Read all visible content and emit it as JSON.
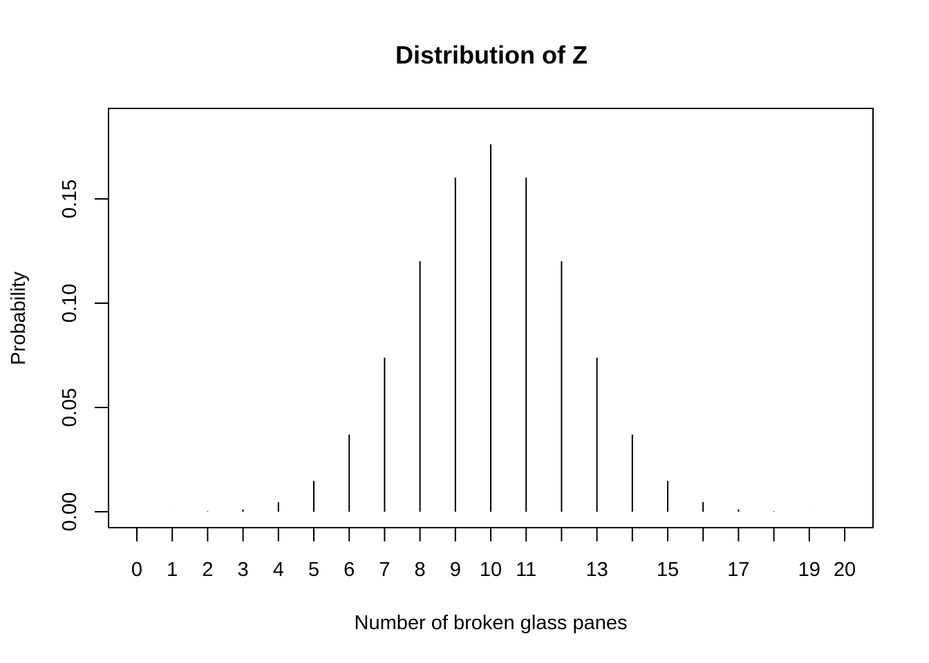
{
  "chart_data": {
    "type": "bar",
    "title": "Distribution of Z",
    "xlabel": "Number of broken glass panes",
    "ylabel": "Probability",
    "x": [
      0,
      1,
      2,
      3,
      4,
      5,
      6,
      7,
      8,
      9,
      10,
      11,
      12,
      13,
      14,
      15,
      16,
      17,
      18,
      19,
      20
    ],
    "values": [
      1e-06,
      2e-05,
      0.0002,
      0.0011,
      0.0046,
      0.0148,
      0.037,
      0.0739,
      0.1201,
      0.1602,
      0.1762,
      0.1602,
      0.1201,
      0.0739,
      0.037,
      0.0148,
      0.0046,
      0.0011,
      0.0002,
      2e-05,
      1e-06
    ],
    "x_tick_labels": [
      "0",
      "1",
      "2",
      "3",
      "4",
      "5",
      "6",
      "7",
      "8",
      "9",
      "10",
      "11",
      "",
      "13",
      "",
      "15",
      "",
      "17",
      "",
      "19",
      "20"
    ],
    "y_ticks": [
      0.0,
      0.05,
      0.1,
      0.15
    ],
    "y_tick_labels": [
      "0.00",
      "0.05",
      "0.10",
      "0.15"
    ],
    "xlim": [
      0,
      20
    ],
    "ylim": [
      0,
      0.185
    ],
    "grid": false,
    "line_color": "#000000"
  }
}
